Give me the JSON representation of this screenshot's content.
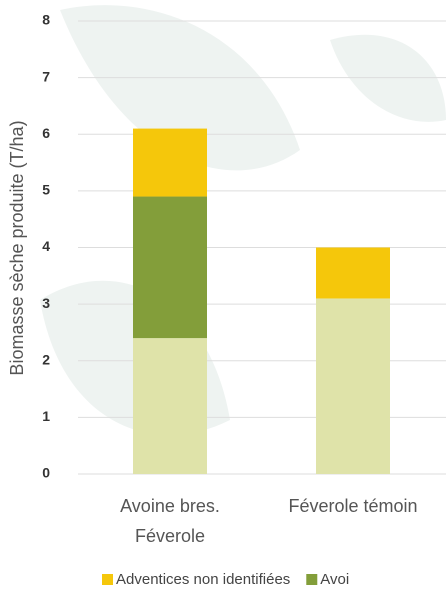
{
  "chart_data": {
    "type": "stacked_bar",
    "y_label": "Biomasse sèche produite (T/ha)",
    "categories": [
      "Avoine bres. Féverole",
      "Féverole témoin"
    ],
    "series": [
      {
        "color": "#dfe3a9",
        "values": [
          2.4,
          3.1
        ]
      },
      {
        "name": "Avoi",
        "color": "#839e3a",
        "values": [
          2.5,
          0
        ]
      },
      {
        "name": "Adventices non identifiées",
        "color": "#f5c70b",
        "values": [
          1.2,
          0.9
        ]
      }
    ],
    "legend_series": [
      2,
      1
    ],
    "ylim": [
      0,
      8
    ],
    "yticks": [
      0,
      1,
      2,
      3,
      4,
      5,
      6,
      7,
      8
    ],
    "grid": true
  }
}
